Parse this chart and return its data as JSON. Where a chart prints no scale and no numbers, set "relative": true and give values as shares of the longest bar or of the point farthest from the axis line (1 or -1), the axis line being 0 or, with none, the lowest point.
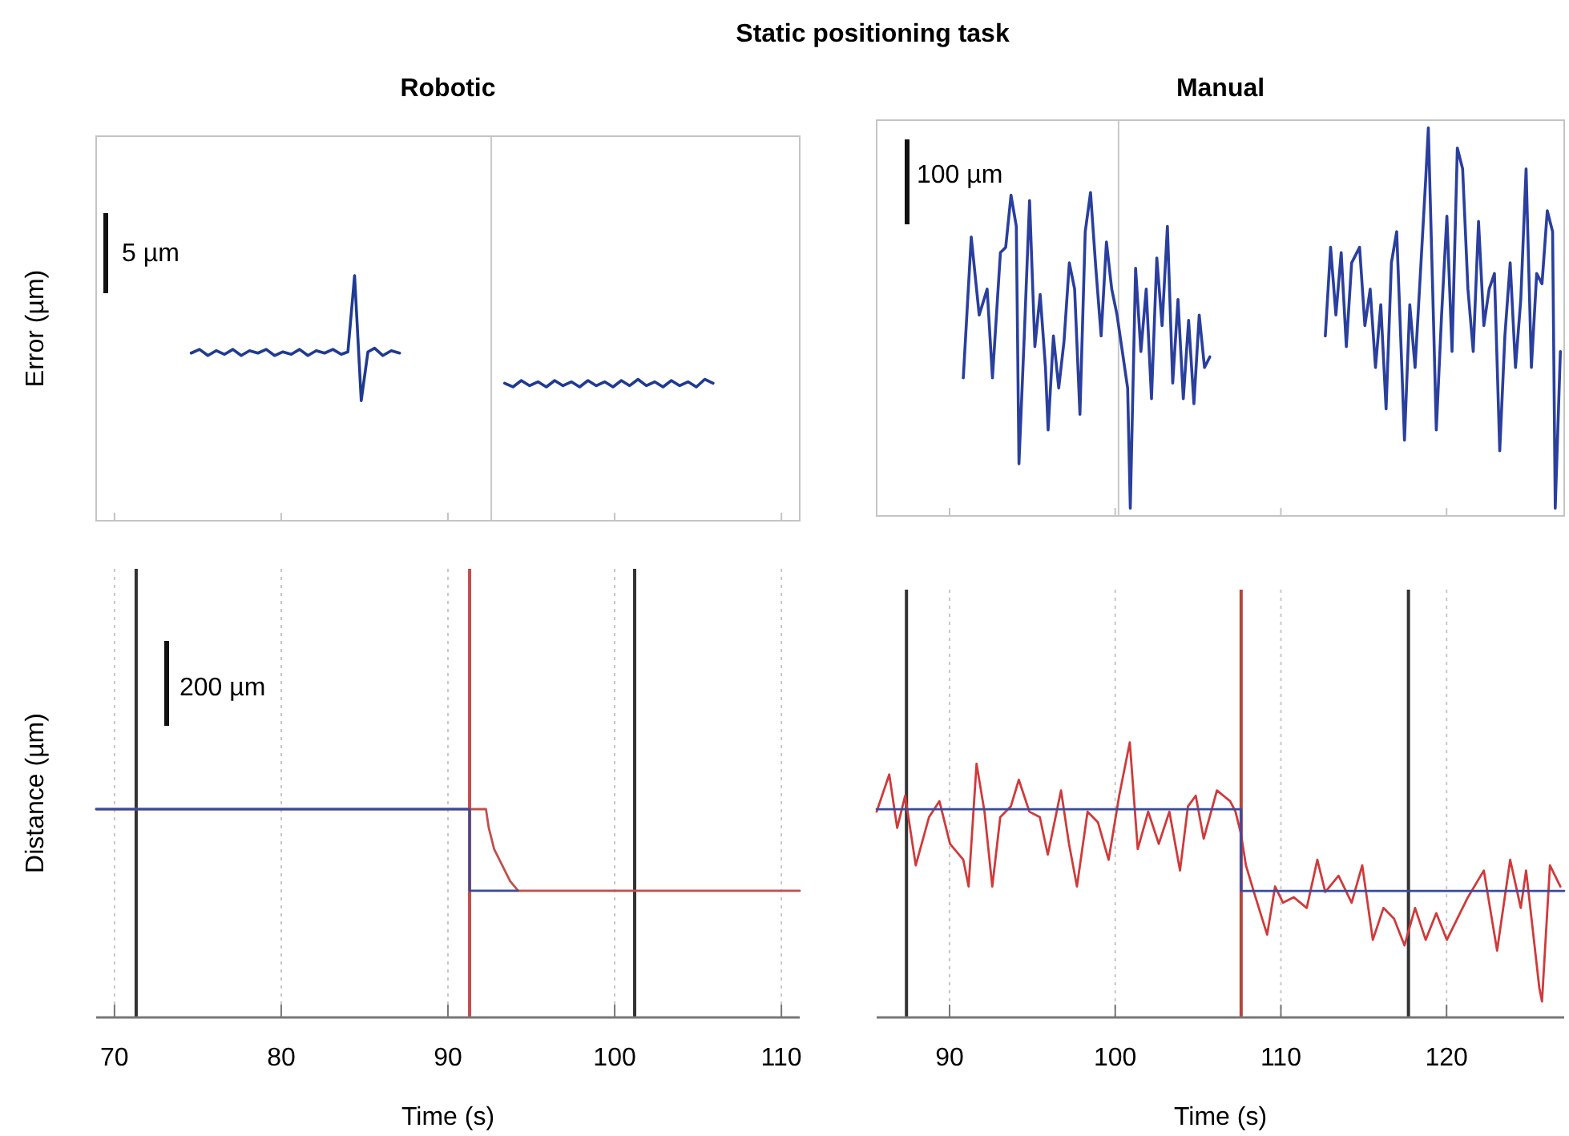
{
  "chart_data": [
    {
      "type": "line",
      "title": "Static positioning task",
      "subtitle": "Robotic",
      "ylabel": "Error (µm)",
      "relative": true,
      "xlim": [
        68.9,
        111.1
      ],
      "xticks": [
        70,
        80,
        90,
        100,
        110
      ],
      "tick_labels": false,
      "grid": false,
      "marker": "none",
      "annotations": [
        "5 µm"
      ],
      "ref_lines": [
        {
          "axis": "x",
          "value": 92.6,
          "color": "#c8c8c8",
          "line_style": "solid"
        }
      ],
      "series": [
        {
          "color": "#1f3a93",
          "x": [
            74.6,
            75.1,
            75.6,
            76.1,
            76.6,
            77.1,
            77.6,
            78.1,
            78.6,
            79.1,
            79.6,
            80.1,
            80.6,
            81.1,
            81.6,
            82.1,
            82.6,
            83.1,
            83.6,
            84.0,
            84.4,
            84.8,
            85.2,
            85.6,
            86.1,
            86.6,
            87.1,
            90,
            93.4,
            93.9,
            94.4,
            94.9,
            95.4,
            95.9,
            96.4,
            96.9,
            97.4,
            97.9,
            98.4,
            98.9,
            99.4,
            99.9,
            100.4,
            100.9,
            101.4,
            101.9,
            102.4,
            102.9,
            103.4,
            103.9,
            104.4,
            104.9,
            105.4,
            105.9
          ],
          "values": [
            0.684,
            0.699,
            0.674,
            0.694,
            0.679,
            0.699,
            0.674,
            0.694,
            0.684,
            0.699,
            0.674,
            0.689,
            0.679,
            0.699,
            0.674,
            0.694,
            0.684,
            0.699,
            0.679,
            0.689,
            1,
            0.49,
            0.689,
            0.704,
            0.674,
            0.694,
            0.684,
            null,
            0.561,
            0.546,
            0.572,
            0.551,
            0.567,
            0.546,
            0.572,
            0.551,
            0.567,
            0.546,
            0.572,
            0.551,
            0.567,
            0.546,
            0.572,
            0.551,
            0.577,
            0.551,
            0.567,
            0.546,
            0.572,
            0.551,
            0.567,
            0.546,
            0.577,
            0.561
          ]
        }
      ]
    },
    {
      "type": "line",
      "subtitle": "Manual",
      "relative": true,
      "xlim": [
        85.6,
        127.1
      ],
      "xticks": [
        90,
        100,
        110,
        120
      ],
      "tick_labels": false,
      "grid": false,
      "marker": "none",
      "annotations": [
        "100 µm"
      ],
      "ref_lines": [
        {
          "axis": "x",
          "value": 100.2,
          "color": "#c8c8c8",
          "line_style": "solid"
        }
      ],
      "series": [
        {
          "color": "#2a3f9e",
          "x": [
            90.83,
            91.31,
            91.79,
            92.27,
            92.59,
            93.07,
            93.39,
            93.71,
            94.03,
            94.19,
            94.51,
            94.83,
            95.15,
            95.47,
            95.79,
            95.95,
            96.27,
            96.59,
            96.91,
            97.23,
            97.55,
            97.87,
            98.19,
            98.51,
            98.83,
            99.15,
            99.47,
            99.79,
            100.11,
            100.43,
            100.75,
            100.91,
            101.23,
            101.55,
            101.87,
            102.19,
            102.51,
            102.83,
            103.15,
            103.47,
            103.79,
            104.11,
            104.43,
            104.75,
            105.07,
            105.39,
            105.71,
            109,
            112.68,
            113.0,
            113.32,
            113.64,
            113.95,
            114.27,
            114.75,
            115.07,
            115.39,
            115.71,
            116.03,
            116.35,
            116.67,
            116.99,
            117.3,
            117.46,
            117.78,
            118.1,
            118.42,
            118.74,
            118.9,
            119.22,
            119.38,
            119.7,
            120.02,
            120.33,
            120.65,
            120.97,
            121.29,
            121.61,
            121.93,
            122.25,
            122.57,
            122.89,
            123.21,
            123.52,
            123.84,
            124.16,
            124.48,
            124.8,
            125.12,
            125.44,
            125.76,
            126.08,
            126.4,
            126.56,
            126.87
          ],
          "values": [
            0.343,
            0.713,
            0.508,
            0.576,
            0.343,
            0.672,
            0.686,
            0.823,
            0.741,
            0.117,
            0.453,
            0.809,
            0.425,
            0.562,
            0.37,
            0.206,
            0.453,
            0.316,
            0.439,
            0.645,
            0.576,
            0.247,
            0.727,
            0.83,
            0.631,
            0.453,
            0.7,
            0.576,
            0.508,
            0.412,
            0.316,
            0,
            0.631,
            0.412,
            0.576,
            0.288,
            0.658,
            0.48,
            0.741,
            0.329,
            0.549,
            0.288,
            0.494,
            0.275,
            0.508,
            0.37,
            0.398,
            null,
            0.453,
            0.686,
            0.508,
            0.672,
            0.425,
            0.645,
            0.686,
            0.48,
            0.576,
            0.37,
            0.535,
            0.261,
            0.645,
            0.727,
            0.37,
            0.179,
            0.535,
            0.37,
            0.617,
            0.864,
            1,
            0.48,
            0.206,
            0.508,
            0.768,
            0.412,
            0.947,
            0.892,
            0.576,
            0.412,
            0.754,
            0.48,
            0.576,
            0.617,
            0.151,
            0.453,
            0.645,
            0.37,
            0.549,
            0.892,
            0.37,
            0.617,
            0.59,
            0.782,
            0.727,
            0,
            0.412
          ]
        }
      ]
    },
    {
      "type": "line",
      "xlabel": "Time (s)",
      "ylabel": "Distance (µm)",
      "relative": true,
      "xlim": [
        68.9,
        111.1
      ],
      "xticks": [
        70,
        80,
        90,
        100,
        110
      ],
      "tick_labels": "x",
      "grid": "x",
      "marker": "none",
      "annotations": [
        "200 µm"
      ],
      "ref_lines": [
        {
          "axis": "x",
          "value": 71.3,
          "color": "#333333",
          "line_style": "solid"
        },
        {
          "axis": "x",
          "value": 91.3,
          "color": "#c0504d",
          "line_style": "solid"
        },
        {
          "axis": "x",
          "value": 101.2,
          "color": "#333333",
          "line_style": "solid"
        }
      ],
      "series": [
        {
          "color": "#c0504d",
          "x": [
            68.9,
            92.28,
            92.45,
            92.77,
            93.25,
            93.73,
            94.21,
            111.1
          ],
          "values": [
            1,
            1,
            0.91,
            0.808,
            0.731,
            0.654,
            0.608,
            0.608
          ]
        },
        {
          "color": "#3b4a9a",
          "x": [
            68.9,
            91.3,
            91.3,
            94.2
          ],
          "values": [
            1,
            1,
            0.608,
            0.608
          ]
        }
      ]
    },
    {
      "type": "line",
      "xlabel": "Time (s)",
      "relative": true,
      "xlim": [
        85.6,
        127.1
      ],
      "xticks": [
        90,
        100,
        110,
        120
      ],
      "tick_labels": "x",
      "grid": "x",
      "marker": "none",
      "ref_lines": [
        {
          "axis": "x",
          "value": 87.4,
          "color": "#333333",
          "line_style": "solid"
        },
        {
          "axis": "x",
          "value": 107.6,
          "color": "#b5443f",
          "line_style": "solid"
        },
        {
          "axis": "x",
          "value": 117.7,
          "color": "#333333",
          "line_style": "solid"
        }
      ],
      "series": [
        {
          "color": "#d03a3a",
          "x": [
            85.6,
            86.36,
            86.84,
            87.32,
            87.96,
            88.76,
            89.39,
            90.03,
            90.83,
            91.15,
            91.63,
            92.11,
            92.58,
            93.06,
            93.7,
            94.18,
            94.82,
            95.45,
            95.93,
            96.73,
            97.21,
            97.69,
            98.33,
            98.96,
            99.6,
            100.24,
            100.88,
            101.36,
            101.99,
            102.63,
            103.27,
            103.91,
            104.39,
            104.86,
            105.34,
            106.14,
            106.94,
            107.26,
            107.58,
            107.89,
            108.37,
            109.17,
            109.65,
            110.13,
            110.77,
            111.56,
            112.2,
            112.68,
            113.48,
            114.27,
            114.91,
            115.55,
            116.19,
            116.83,
            117.46,
            118.1,
            118.74,
            119.38,
            120.02,
            120.65,
            121.29,
            122.25,
            123.05,
            123.84,
            124.48,
            124.8,
            125.6,
            125.76,
            126.24,
            126.87
          ],
          "values": [
            0.748,
            0.883,
            0.689,
            0.806,
            0.553,
            0.728,
            0.786,
            0.631,
            0.573,
            0.476,
            0.922,
            0.748,
            0.476,
            0.728,
            0.767,
            0.864,
            0.748,
            0.728,
            0.592,
            0.825,
            0.631,
            0.476,
            0.748,
            0.709,
            0.573,
            0.806,
            1,
            0.612,
            0.748,
            0.631,
            0.748,
            0.534,
            0.767,
            0.806,
            0.65,
            0.825,
            0.786,
            0.748,
            0.67,
            0.553,
            0.456,
            0.301,
            0.476,
            0.417,
            0.437,
            0.398,
            0.573,
            0.456,
            0.515,
            0.417,
            0.553,
            0.282,
            0.398,
            0.359,
            0.262,
            0.398,
            0.282,
            0.379,
            0.282,
            0.359,
            0.437,
            0.534,
            0.243,
            0.573,
            0.398,
            0.534,
            0.107,
            0.058,
            0.553,
            0.476
          ]
        },
        {
          "color": "#3b4a9a",
          "x": [
            85.6,
            107.6,
            107.6,
            127.1
          ],
          "values": [
            0.757,
            0.757,
            0.46,
            0.46
          ]
        }
      ]
    }
  ]
}
